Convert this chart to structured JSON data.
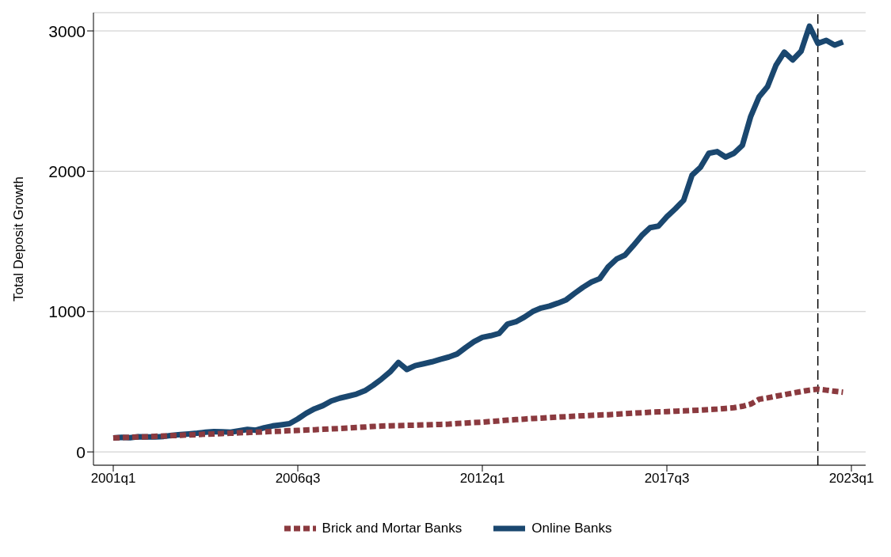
{
  "chart_data": {
    "type": "line",
    "ylabel": "Total Deposit Growth",
    "categories": [
      "2001q1",
      null,
      null,
      null,
      null,
      null,
      null,
      null,
      null,
      null,
      null,
      null,
      null,
      null,
      null,
      null,
      null,
      null,
      null,
      null,
      null,
      null,
      "2006q3",
      null,
      null,
      null,
      null,
      null,
      null,
      null,
      null,
      null,
      null,
      null,
      null,
      null,
      null,
      null,
      null,
      null,
      null,
      null,
      null,
      null,
      "2012q1",
      null,
      null,
      null,
      null,
      null,
      null,
      null,
      null,
      null,
      null,
      null,
      null,
      null,
      null,
      null,
      null,
      null,
      null,
      null,
      null,
      null,
      "2017q3",
      null,
      null,
      null,
      null,
      null,
      null,
      null,
      null,
      null,
      null,
      null,
      null,
      null,
      null,
      null,
      null,
      null,
      null,
      null,
      null,
      null,
      "2023q1"
    ],
    "ylim": [
      -95,
      3130
    ],
    "yticks": [
      0,
      1000,
      2000,
      3000
    ],
    "grid": "y",
    "legend": "bottom",
    "marker": "none",
    "series": [
      {
        "name": "Brick and Mortar Banks",
        "color": "#8b3a3f",
        "line_style": "dashed",
        "values": [
          100,
          102,
          104,
          106,
          108,
          111,
          113,
          116,
          118,
          121,
          123,
          126,
          128,
          131,
          133,
          136,
          138,
          141,
          143,
          146,
          148,
          151,
          153,
          156,
          158,
          161,
          164,
          167,
          170,
          174,
          177,
          181,
          184,
          186,
          187,
          189,
          190,
          192,
          194,
          196,
          198,
          202,
          205,
          209,
          212,
          217,
          221,
          226,
          230,
          234,
          238,
          241,
          245,
          248,
          251,
          254,
          257,
          260,
          263,
          265,
          268,
          272,
          276,
          279,
          283,
          285,
          287,
          290,
          292,
          295,
          298,
          302,
          305,
          310,
          315,
          325,
          341,
          375,
          385,
          397,
          408,
          419,
          430,
          440,
          447,
          440,
          432,
          425,
          null
        ]
      },
      {
        "name": "Online Banks",
        "color": "#1a476f",
        "line_style": "solid",
        "values": [
          100,
          104,
          101,
          108,
          107,
          106,
          110,
          118,
          124,
          128,
          133,
          140,
          145,
          143,
          140,
          150,
          160,
          155,
          172,
          185,
          193,
          201,
          235,
          275,
          307,
          330,
          363,
          383,
          397,
          412,
          436,
          475,
          520,
          570,
          637,
          587,
          615,
          628,
          642,
          660,
          676,
          698,
          743,
          785,
          816,
          828,
          844,
          911,
          927,
          960,
          1000,
          1025,
          1039,
          1060,
          1084,
          1130,
          1173,
          1210,
          1235,
          1318,
          1374,
          1402,
          1470,
          1542,
          1598,
          1609,
          1676,
          1732,
          1793,
          1972,
          2028,
          2128,
          2140,
          2101,
          2128,
          2184,
          2391,
          2531,
          2603,
          2754,
          2849,
          2793,
          2855,
          3034,
          2911,
          2933,
          2899,
          2922,
          null
        ]
      }
    ]
  }
}
